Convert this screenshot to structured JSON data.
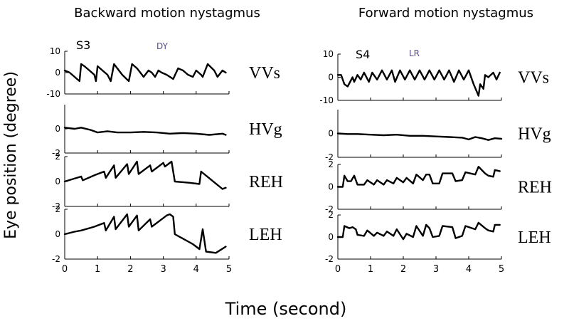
{
  "figure": {
    "ylabel": "Eye position (degree)",
    "xlabel": "Time (second)"
  },
  "chart_data": [
    {
      "type": "line",
      "title": "Backward motion nystagmus",
      "subject": "S3",
      "initials": "DY",
      "xlabel": "Time (second)",
      "ylabel": "Eye position (degree)",
      "xlim": [
        0,
        5
      ],
      "xticks": [
        0,
        1,
        2,
        3,
        4,
        5
      ],
      "grid": false,
      "rows": [
        {
          "name": "VVs",
          "ylim": [
            -10,
            10
          ],
          "yticks": [
            -10,
            0,
            10
          ],
          "x": [
            0,
            0.15,
            0.3,
            0.45,
            0.5,
            0.6,
            0.75,
            0.9,
            0.95,
            1.0,
            1.15,
            1.3,
            1.4,
            1.5,
            1.6,
            1.75,
            1.95,
            2.05,
            2.2,
            2.3,
            2.4,
            2.55,
            2.65,
            2.75,
            2.85,
            2.95,
            3.1,
            3.3,
            3.45,
            3.6,
            3.75,
            3.9,
            4.0,
            4.15,
            4.2,
            4.35,
            4.55,
            4.65,
            4.8,
            4.9
          ],
          "y": [
            1,
            0,
            -2,
            -4,
            4,
            3,
            1,
            -1,
            -4,
            3,
            1,
            -1,
            -4,
            4,
            2,
            -1,
            -4,
            4,
            2,
            0,
            -2,
            1,
            0,
            -2,
            1,
            0,
            -1,
            -3,
            2,
            1,
            -1,
            -2,
            1,
            -1,
            -2,
            4,
            1,
            -2,
            1,
            0
          ]
        },
        {
          "name": "HVg",
          "ylim": [
            -2,
            2
          ],
          "yticks": [
            -2,
            0
          ],
          "x": [
            0,
            0.3,
            0.5,
            0.8,
            1.0,
            1.3,
            1.6,
            2.0,
            2.4,
            2.8,
            3.2,
            3.6,
            4.0,
            4.4,
            4.8,
            4.9
          ],
          "y": [
            0.1,
            0.0,
            0.1,
            -0.1,
            -0.3,
            -0.2,
            -0.3,
            -0.3,
            -0.25,
            -0.3,
            -0.4,
            -0.35,
            -0.4,
            -0.5,
            -0.4,
            -0.5
          ]
        },
        {
          "name": "REH",
          "ylim": [
            -2,
            2
          ],
          "yticks": [
            -2,
            0,
            2
          ],
          "x": [
            0,
            0.25,
            0.5,
            0.55,
            0.9,
            1.2,
            1.25,
            1.5,
            1.55,
            1.9,
            1.95,
            2.2,
            2.25,
            2.6,
            2.65,
            3.0,
            3.05,
            3.25,
            3.35,
            3.8,
            4.1,
            4.15,
            4.8,
            4.9
          ],
          "y": [
            0,
            0.2,
            0.4,
            0.1,
            0.5,
            0.8,
            0.3,
            1.3,
            0.3,
            1.4,
            0.6,
            1.6,
            0.6,
            1.3,
            0.8,
            1.5,
            1.2,
            1.6,
            0.0,
            -0.1,
            -0.2,
            0.8,
            -0.6,
            -0.5
          ]
        },
        {
          "name": "LEH",
          "ylim": [
            -2,
            2
          ],
          "yticks": [
            -2,
            0,
            2
          ],
          "x": [
            0,
            0.3,
            0.5,
            0.9,
            1.2,
            1.25,
            1.5,
            1.55,
            1.9,
            1.95,
            2.2,
            2.25,
            2.6,
            2.65,
            3.0,
            3.1,
            3.2,
            3.3,
            3.35,
            3.9,
            4.1,
            4.2,
            4.3,
            4.6,
            4.9
          ],
          "y": [
            0,
            0.2,
            0.3,
            0.6,
            0.9,
            0.3,
            1.4,
            0.4,
            1.6,
            0.6,
            1.5,
            0.3,
            1.2,
            0.6,
            1.3,
            1.5,
            1.6,
            1.4,
            0.0,
            -0.8,
            -1.2,
            0.4,
            -1.4,
            -1.5,
            -1.0
          ]
        }
      ]
    },
    {
      "type": "line",
      "title": "Forward motion nystagmus",
      "subject": "S4",
      "initials": "LR",
      "xlabel": "Time (second)",
      "ylabel": "Eye position (degree)",
      "xlim": [
        0,
        5
      ],
      "xticks": [
        0,
        1,
        2,
        3,
        4,
        5
      ],
      "grid": false,
      "rows": [
        {
          "name": "VVs",
          "ylim": [
            -10,
            10
          ],
          "yticks": [
            -10,
            0,
            10
          ],
          "x": [
            0,
            0.1,
            0.2,
            0.3,
            0.45,
            0.5,
            0.6,
            0.7,
            0.8,
            0.95,
            1.05,
            1.2,
            1.35,
            1.5,
            1.65,
            1.75,
            1.9,
            2.05,
            2.2,
            2.35,
            2.5,
            2.65,
            2.8,
            2.95,
            3.1,
            3.25,
            3.4,
            3.55,
            3.7,
            3.85,
            4.0,
            4.15,
            4.3,
            4.35,
            4.45,
            4.5,
            4.6,
            4.75,
            4.85,
            4.95
          ],
          "y": [
            1,
            1,
            -3,
            -4,
            0,
            -2,
            1,
            -1,
            2,
            -2,
            2,
            -1,
            3,
            -1,
            3,
            -2,
            3,
            -1,
            3,
            -1,
            3,
            -1,
            3,
            -1,
            3,
            -1,
            3,
            -2,
            3,
            -1,
            3,
            -3,
            -8,
            -3,
            -5,
            1,
            0,
            2,
            -1,
            2
          ]
        },
        {
          "name": "HVg",
          "ylim": [
            -2,
            2
          ],
          "yticks": [
            -2,
            0
          ],
          "x": [
            0,
            0.3,
            0.6,
            1.0,
            1.4,
            1.8,
            2.2,
            2.6,
            3.0,
            3.4,
            3.8,
            4.0,
            4.2,
            4.4,
            4.6,
            4.8,
            5.0
          ],
          "y": [
            0,
            -0.05,
            -0.05,
            -0.1,
            -0.15,
            -0.1,
            -0.2,
            -0.2,
            -0.25,
            -0.3,
            -0.35,
            -0.5,
            -0.3,
            -0.4,
            -0.55,
            -0.4,
            -0.45
          ]
        },
        {
          "name": "REH",
          "ylim": [
            -2,
            2
          ],
          "yticks": [
            -2,
            0,
            2
          ],
          "x": [
            0,
            0.15,
            0.2,
            0.3,
            0.4,
            0.5,
            0.6,
            0.8,
            0.9,
            1.1,
            1.2,
            1.4,
            1.5,
            1.7,
            1.8,
            2.0,
            2.1,
            2.3,
            2.4,
            2.6,
            2.7,
            2.8,
            2.9,
            3.1,
            3.2,
            3.5,
            3.6,
            3.8,
            3.9,
            4.2,
            4.3,
            4.5,
            4.6,
            4.75,
            4.8,
            4.95
          ],
          "y": [
            0,
            0,
            1.0,
            0.5,
            0.5,
            1.0,
            0.2,
            0.2,
            0.6,
            0.2,
            0.6,
            0.2,
            0.6,
            0.3,
            0.8,
            0.4,
            0.8,
            0.3,
            1.1,
            0.6,
            1.1,
            1.1,
            0.3,
            0.3,
            1.2,
            1.2,
            0.5,
            0.6,
            1.3,
            1.1,
            1.8,
            1.2,
            1.0,
            0.9,
            1.5,
            1.4
          ]
        },
        {
          "name": "LEH",
          "ylim": [
            -2,
            2
          ],
          "yticks": [
            -2,
            0,
            2
          ],
          "x": [
            0,
            0.15,
            0.2,
            0.35,
            0.45,
            0.55,
            0.6,
            0.8,
            0.9,
            1.1,
            1.2,
            1.4,
            1.5,
            1.7,
            1.8,
            2.0,
            2.1,
            2.3,
            2.4,
            2.6,
            2.7,
            2.8,
            2.9,
            3.1,
            3.2,
            3.5,
            3.6,
            3.8,
            3.9,
            4.2,
            4.3,
            4.5,
            4.6,
            4.75,
            4.8,
            4.95
          ],
          "y": [
            0,
            0,
            1.0,
            0.8,
            0.9,
            0.7,
            0.2,
            0.1,
            0.6,
            0.1,
            0.4,
            0.1,
            0.5,
            0.1,
            0.7,
            -0.2,
            0.3,
            0.0,
            1.0,
            0.1,
            1.1,
            0.8,
            0.0,
            0.1,
            1.0,
            0.9,
            -0.1,
            0.1,
            1.0,
            0.7,
            1.3,
            0.8,
            0.6,
            0.5,
            1.1,
            1.1
          ]
        }
      ]
    }
  ]
}
